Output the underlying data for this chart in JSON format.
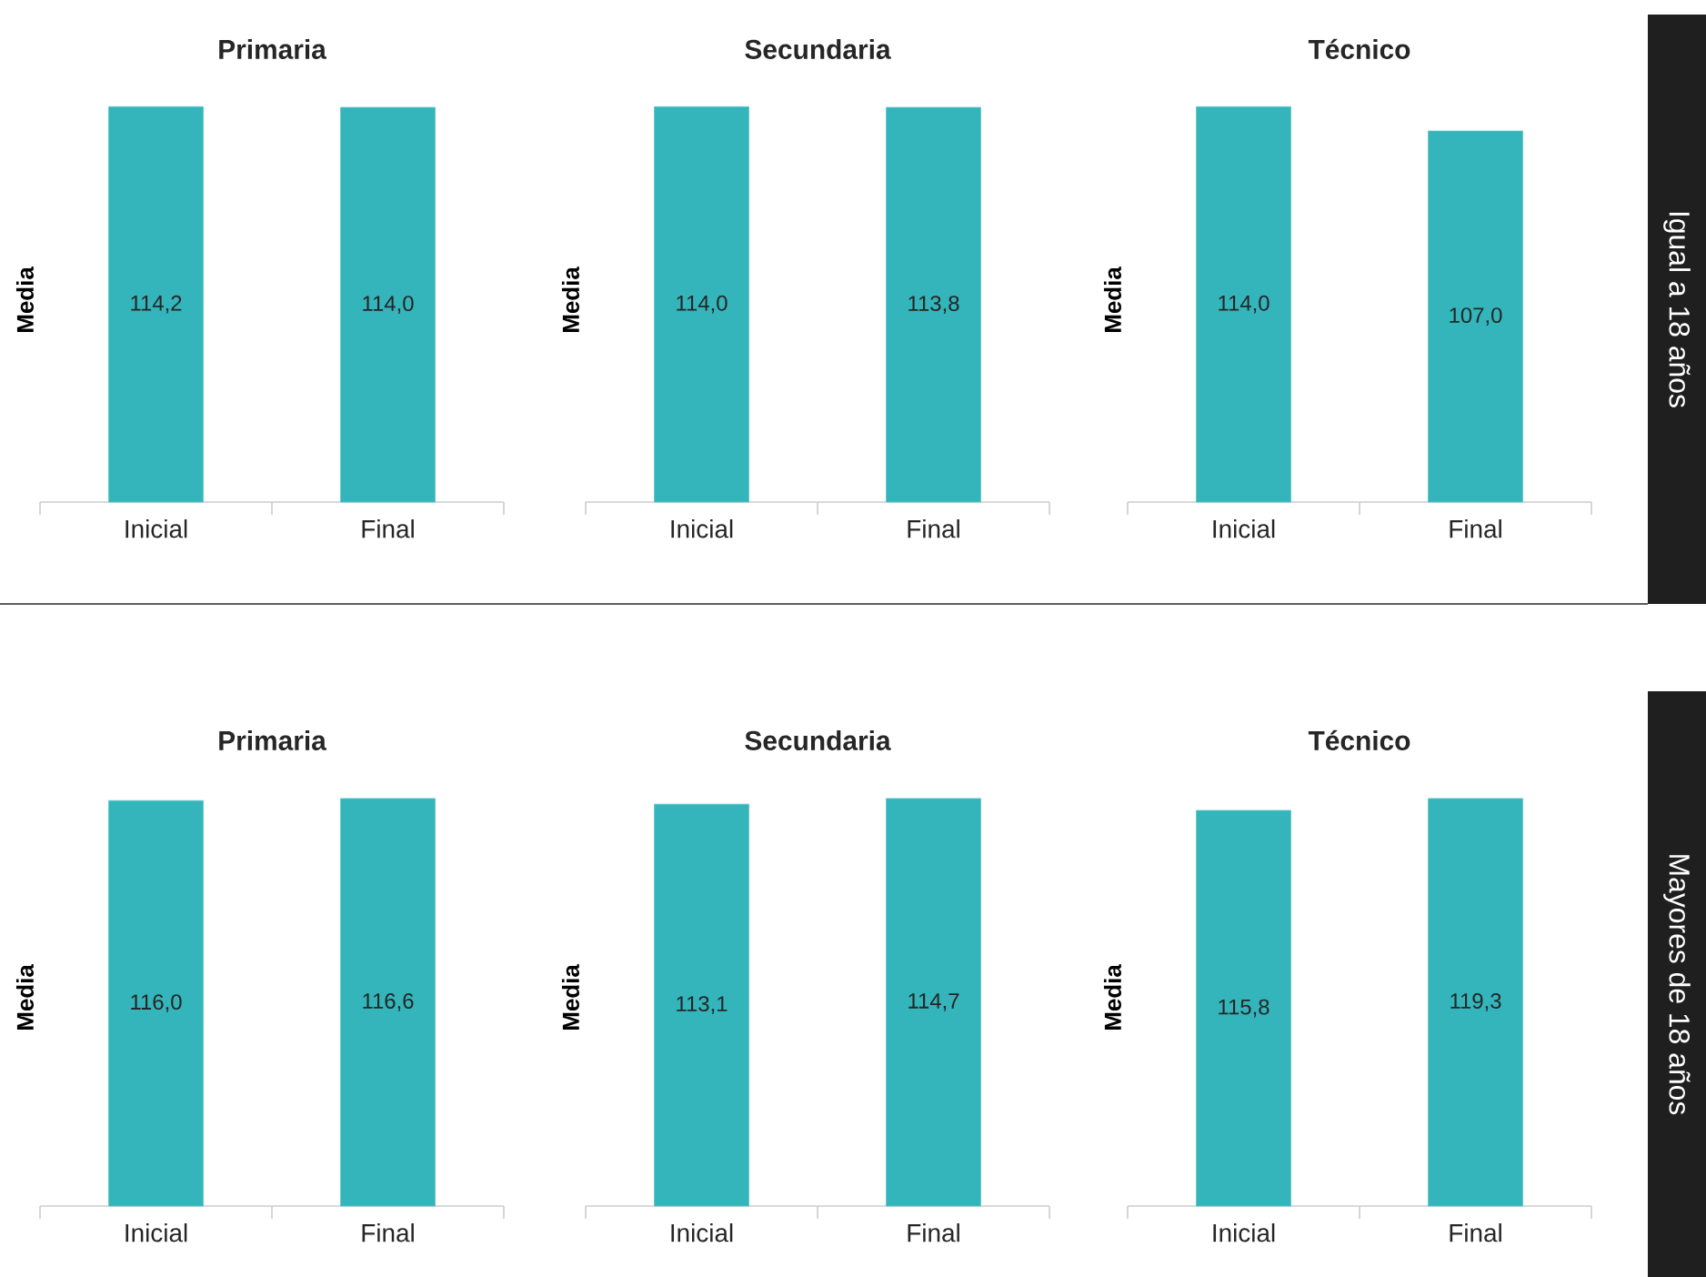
{
  "chart_data": [
    {
      "type": "bar",
      "title": "Primaria",
      "ylabel": "Media",
      "categories": [
        "Inicial",
        "Final"
      ],
      "values": [
        114.2,
        114.0
      ],
      "value_labels": [
        "114,2",
        "114,0"
      ],
      "color": "#33b5bb",
      "tick_labels": "x"
    },
    {
      "type": "bar",
      "title": "Secundaria",
      "ylabel": "Media",
      "categories": [
        "Inicial",
        "Final"
      ],
      "values": [
        114.0,
        113.8
      ],
      "value_labels": [
        "114,0",
        "113,8"
      ],
      "color": "#33b5bb",
      "tick_labels": "x"
    },
    {
      "type": "bar",
      "title": "Técnico",
      "ylabel": "Media",
      "categories": [
        "Inicial",
        "Final"
      ],
      "values": [
        114.0,
        107.0
      ],
      "value_labels": [
        "114,0",
        "107,0"
      ],
      "color": "#33b5bb",
      "tick_labels": "x",
      "annotations": [
        "Igual a 18 años"
      ]
    },
    {
      "type": "bar",
      "title": "Primaria",
      "ylabel": "Media",
      "categories": [
        "Inicial",
        "Final"
      ],
      "values": [
        116.0,
        116.6
      ],
      "value_labels": [
        "116,0",
        "116,6"
      ],
      "color": "#33b5bb",
      "tick_labels": "x"
    },
    {
      "type": "bar",
      "title": "Secundaria",
      "ylabel": "Media",
      "categories": [
        "Inicial",
        "Final"
      ],
      "values": [
        113.1,
        114.7
      ],
      "value_labels": [
        "113,1",
        "114,7"
      ],
      "color": "#33b5bb",
      "tick_labels": "x"
    },
    {
      "type": "bar",
      "title": "Técnico",
      "ylabel": "Media",
      "categories": [
        "Inicial",
        "Final"
      ],
      "values": [
        115.8,
        119.3
      ],
      "value_labels": [
        "115,8",
        "119,3"
      ],
      "color": "#33b5bb",
      "tick_labels": "x",
      "annotations": [
        "Mayores de 18 años"
      ]
    }
  ]
}
